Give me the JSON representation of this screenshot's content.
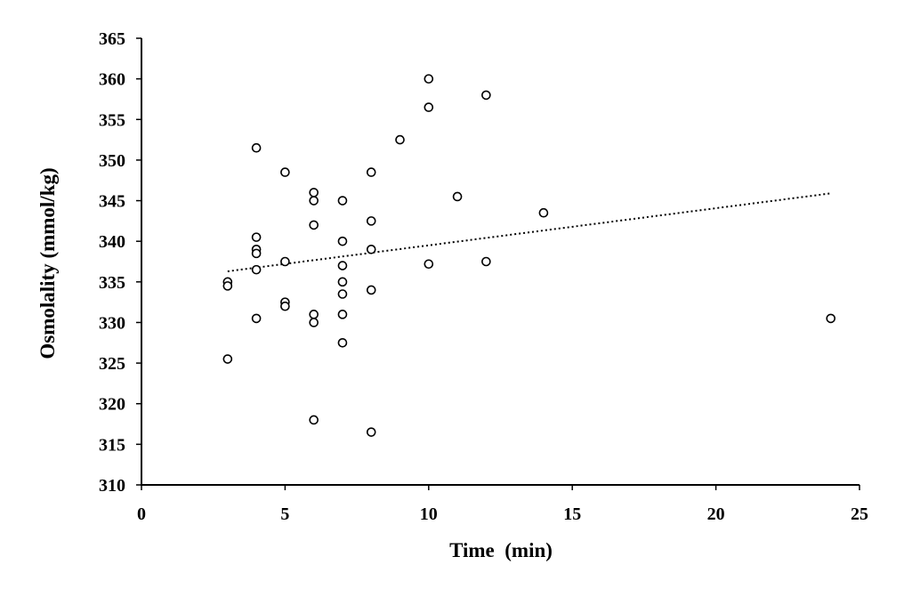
{
  "chart_data": {
    "type": "scatter",
    "title": "",
    "xlabel": "Time  (min)",
    "ylabel": "Osmolality (mmol/kg)",
    "xlim": [
      0,
      25
    ],
    "ylim": [
      310,
      365
    ],
    "xticks": [
      0,
      5,
      10,
      15,
      20,
      25
    ],
    "yticks": [
      310,
      315,
      320,
      325,
      330,
      335,
      340,
      345,
      350,
      355,
      360,
      365
    ],
    "grid": false,
    "legend": "none",
    "series": [
      {
        "name": "Osmolality",
        "marker": "open-circle",
        "points": [
          {
            "x": 3,
            "y": 335.0
          },
          {
            "x": 3,
            "y": 334.5
          },
          {
            "x": 3,
            "y": 325.5
          },
          {
            "x": 4,
            "y": 351.5
          },
          {
            "x": 4,
            "y": 340.5
          },
          {
            "x": 4,
            "y": 339.0
          },
          {
            "x": 4,
            "y": 338.5
          },
          {
            "x": 4,
            "y": 336.5
          },
          {
            "x": 4,
            "y": 330.5
          },
          {
            "x": 5,
            "y": 348.5
          },
          {
            "x": 5,
            "y": 337.5
          },
          {
            "x": 5,
            "y": 332.5
          },
          {
            "x": 5,
            "y": 332.0
          },
          {
            "x": 6,
            "y": 346.0
          },
          {
            "x": 6,
            "y": 345.0
          },
          {
            "x": 6,
            "y": 342.0
          },
          {
            "x": 6,
            "y": 331.0
          },
          {
            "x": 6,
            "y": 330.0
          },
          {
            "x": 6,
            "y": 318.0
          },
          {
            "x": 7,
            "y": 345.0
          },
          {
            "x": 7,
            "y": 340.0
          },
          {
            "x": 7,
            "y": 337.0
          },
          {
            "x": 7,
            "y": 335.0
          },
          {
            "x": 7,
            "y": 333.5
          },
          {
            "x": 7,
            "y": 331.0
          },
          {
            "x": 7,
            "y": 327.5
          },
          {
            "x": 8,
            "y": 348.5
          },
          {
            "x": 8,
            "y": 342.5
          },
          {
            "x": 8,
            "y": 339.0
          },
          {
            "x": 8,
            "y": 334.0
          },
          {
            "x": 8,
            "y": 316.5
          },
          {
            "x": 9,
            "y": 352.5
          },
          {
            "x": 10,
            "y": 360.0
          },
          {
            "x": 10,
            "y": 356.5
          },
          {
            "x": 10,
            "y": 337.2
          },
          {
            "x": 11,
            "y": 345.5
          },
          {
            "x": 12,
            "y": 358.0
          },
          {
            "x": 12,
            "y": 337.5
          },
          {
            "x": 14,
            "y": 343.5
          },
          {
            "x": 24,
            "y": 330.5
          }
        ]
      }
    ],
    "trendline": {
      "type": "linear",
      "style": "dotted",
      "x_start": 3,
      "y_start": 336.3,
      "x_end": 24,
      "y_end": 345.9
    }
  },
  "colors": {
    "axis": "#000000",
    "marker_stroke": "#000000",
    "marker_fill": "#ffffff",
    "trendline": "#000000"
  }
}
